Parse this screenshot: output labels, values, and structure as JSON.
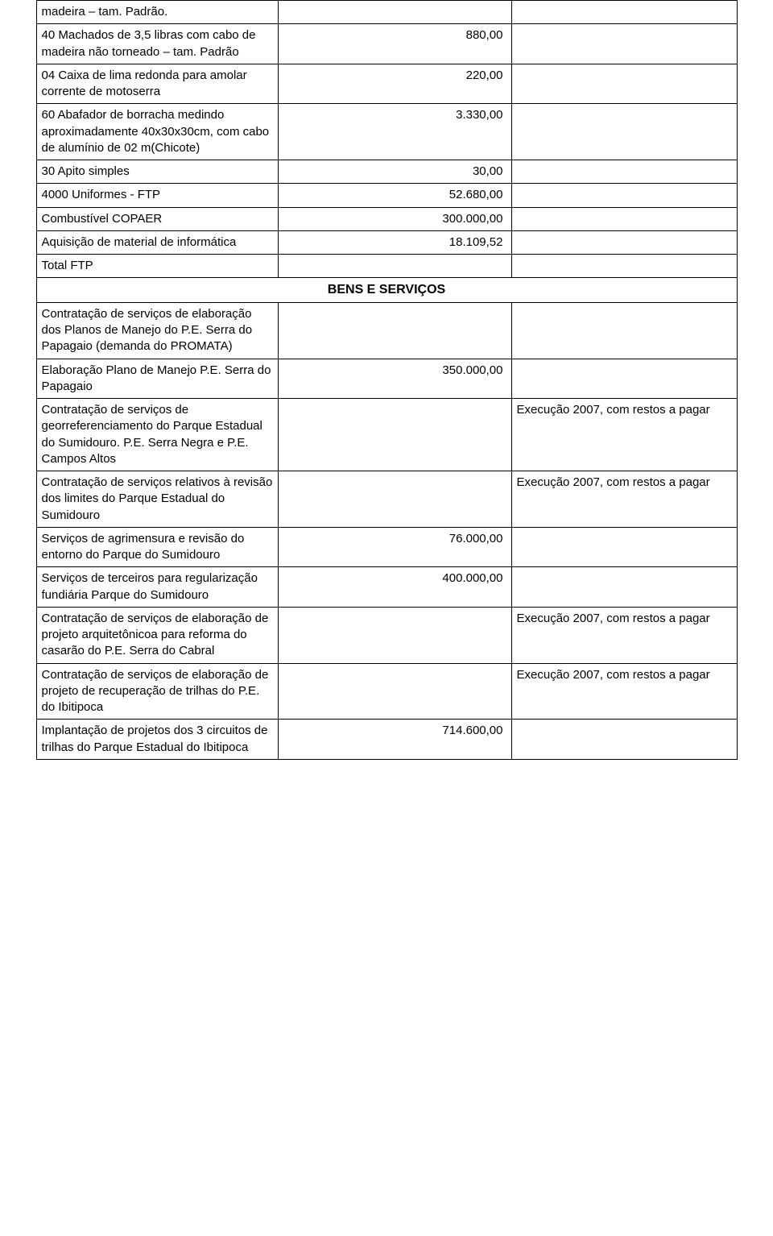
{
  "rows": [
    {
      "c1": "madeira – tam. Padrão.",
      "c2": "",
      "c3": "",
      "c2_align": "num"
    },
    {
      "c1": "40 Machados de 3,5 libras com cabo de madeira não torneado – tam. Padrão",
      "c2": "880,00",
      "c3": "",
      "c2_align": "num"
    },
    {
      "c1": "04 Caixa de lima redonda para amolar corrente de motoserra",
      "c2": "220,00",
      "c3": "",
      "c2_align": "num"
    },
    {
      "c1": "60 Abafador de borracha medindo aproximadamente 40x30x30cm, com cabo de alumínio de 02 m(Chicote)",
      "c2": "3.330,00",
      "c3": "",
      "c2_align": "num"
    },
    {
      "c1": "30 Apito simples",
      "c2": "30,00",
      "c3": "",
      "c2_align": "num"
    },
    {
      "c1": "4000 Uniformes - FTP",
      "c2": "52.680,00",
      "c3": "",
      "c2_align": "num"
    },
    {
      "c1": "Combustível COPAER",
      "c2": "300.000,00",
      "c3": "",
      "c2_align": "num"
    },
    {
      "c1": "Aquisição de material de informática",
      "c2": "18.109,52",
      "c3": "",
      "c2_align": "num"
    },
    {
      "c1": "Total FTP",
      "c2": "",
      "c3": "",
      "c2_align": "num"
    }
  ],
  "section_header": "BENS E SERVIÇOS",
  "rows2": [
    {
      "c1": "Contratação de serviços de elaboração dos Planos de Manejo do P.E. Serra do Papagaio (demanda do PROMATA)",
      "c2": "",
      "c3": "",
      "c2_align": "num"
    },
    {
      "c1": "Elaboração Plano de Manejo P.E. Serra do Papagaio",
      "c2": "350.000,00",
      "c3": "",
      "c2_align": "num"
    },
    {
      "c1": "Contratação de serviços de georreferenciamento do Parque Estadual do Sumidouro. P.E. Serra Negra e P.E. Campos Altos",
      "c2": "",
      "c3": "Execução 2007, com restos a pagar",
      "c2_align": "num"
    },
    {
      "c1": "Contratação de serviços relativos à revisão dos limites do Parque Estadual do Sumidouro",
      "c2": "",
      "c3": "Execução 2007, com restos a pagar",
      "c2_align": "num"
    },
    {
      "c1": "Serviços de agrimensura e revisão do entorno do Parque do Sumidouro",
      "c2": "76.000,00",
      "c3": "",
      "c2_align": "num"
    },
    {
      "c1": "Serviços de terceiros para regularização fundiária Parque do Sumidouro",
      "c2": "400.000,00",
      "c3": "",
      "c2_align": "num"
    },
    {
      "c1": "Contratação de serviços de elaboração de projeto arquitetônicoa para reforma do casarão do P.E. Serra do Cabral",
      "c2": "",
      "c3": "Execução 2007, com restos a pagar",
      "c2_align": "num"
    },
    {
      "c1": "Contratação de serviços de elaboração de projeto de recuperação de trilhas do P.E. do Ibitipoca",
      "c2": "",
      "c3": "Execução 2007, com restos a pagar",
      "c2_align": "num"
    },
    {
      "c1": "Implantação de projetos dos 3 circuitos de trilhas do Parque Estadual do Ibitipoca",
      "c2": "714.600,00",
      "c3": "",
      "c2_align": "num"
    }
  ]
}
